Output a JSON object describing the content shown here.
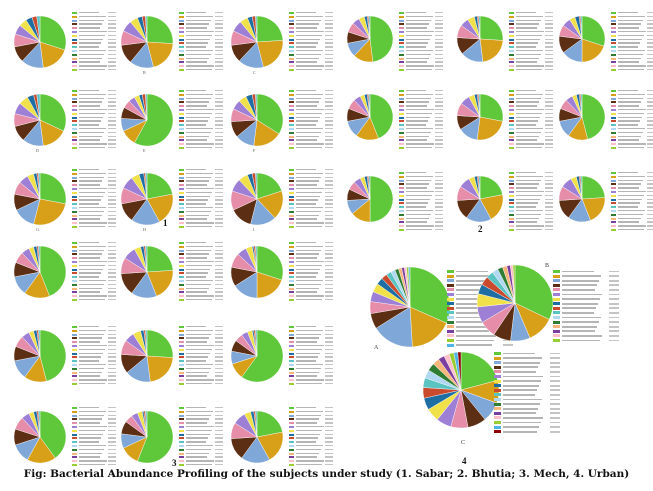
{
  "caption": "Fig: Bacterial Abundance Profiling of the subjects under study (1. Sabar; 2. Bhutia; 3. Mech, 4. Urban)",
  "chart_data": [
    {
      "type": "pie",
      "panel": "1",
      "title": "",
      "charts": [
        {
          "label": "",
          "series": [
            {
              "values": [
                30,
                18,
                14,
                10,
                8,
                6,
                5,
                4,
                3,
                2
              ]
            }
          ]
        },
        {
          "label": "B",
          "series": [
            {
              "values": [
                26,
                20,
                15,
                12,
                9,
                7,
                5,
                3,
                2,
                1
              ]
            }
          ]
        },
        {
          "label": "C",
          "series": [
            {
              "values": [
                24,
                22,
                16,
                11,
                9,
                7,
                5,
                3,
                2,
                1
              ]
            }
          ]
        },
        {
          "label": "D",
          "series": [
            {
              "values": [
                32,
                16,
                13,
                10,
                8,
                7,
                6,
                4,
                2,
                2
              ]
            }
          ]
        },
        {
          "label": "E",
          "series": [
            {
              "values": [
                58,
                10,
                8,
                7,
                5,
                4,
                3,
                2,
                2,
                1
              ]
            }
          ]
        },
        {
          "label": "F",
          "series": [
            {
              "values": [
                34,
                18,
                12,
                10,
                8,
                6,
                5,
                4,
                2,
                1
              ]
            }
          ]
        },
        {
          "label": "G",
          "series": [
            {
              "values": [
                28,
                26,
                14,
                10,
                8,
                6,
                4,
                2,
                1,
                1
              ]
            }
          ]
        },
        {
          "label": "H",
          "series": [
            {
              "values": [
                22,
                20,
                18,
                12,
                10,
                8,
                5,
                3,
                1,
                1
              ]
            }
          ]
        },
        {
          "label": "I",
          "series": [
            {
              "values": [
                20,
                18,
                16,
                14,
                12,
                8,
                6,
                3,
                2,
                1
              ]
            }
          ]
        }
      ]
    },
    {
      "type": "pie",
      "panel": "2",
      "title": "",
      "charts": [
        {
          "label": "",
          "series": [
            {
              "values": [
                48,
                14,
                10,
                8,
                7,
                5,
                4,
                2,
                1,
                1
              ]
            }
          ]
        },
        {
          "label": "",
          "series": [
            {
              "values": [
                26,
                22,
                16,
                12,
                9,
                6,
                5,
                2,
                1,
                1
              ]
            }
          ]
        },
        {
          "label": "",
          "series": [
            {
              "values": [
                30,
                20,
                15,
                12,
                8,
                6,
                4,
                3,
                1,
                1
              ]
            }
          ]
        },
        {
          "label": "",
          "series": [
            {
              "values": [
                44,
                16,
                12,
                9,
                7,
                5,
                3,
                2,
                1,
                1
              ]
            }
          ]
        },
        {
          "label": "",
          "series": [
            {
              "values": [
                28,
                24,
                14,
                10,
                9,
                7,
                4,
                2,
                1,
                1
              ]
            }
          ]
        },
        {
          "label": "",
          "series": [
            {
              "values": [
                46,
                14,
                12,
                9,
                7,
                5,
                3,
                2,
                1,
                1
              ]
            }
          ]
        },
        {
          "label": "",
          "series": [
            {
              "values": [
                50,
                14,
                10,
                8,
                6,
                5,
                3,
                2,
                1,
                1
              ]
            }
          ]
        },
        {
          "label": "",
          "series": [
            {
              "values": [
                22,
                20,
                18,
                14,
                10,
                8,
                4,
                2,
                1,
                1
              ]
            }
          ]
        },
        {
          "label": "",
          "series": [
            {
              "values": [
                24,
                20,
                16,
                14,
                10,
                8,
                4,
                2,
                1,
                1
              ]
            }
          ]
        }
      ]
    },
    {
      "type": "pie",
      "panel": "3",
      "title": "",
      "charts": [
        {
          "label": "",
          "series": [
            {
              "values": [
                44,
                16,
                12,
                9,
                7,
                5,
                3,
                2,
                1,
                1
              ]
            }
          ]
        },
        {
          "label": "",
          "series": [
            {
              "values": [
                24,
                20,
                16,
                14,
                10,
                8,
                4,
                2,
                1,
                1
              ]
            }
          ]
        },
        {
          "label": "",
          "series": [
            {
              "values": [
                30,
                20,
                16,
                12,
                9,
                6,
                4,
                1,
                1,
                1
              ]
            }
          ]
        },
        {
          "label": "",
          "series": [
            {
              "values": [
                46,
                14,
                12,
                9,
                7,
                5,
                3,
                2,
                1,
                1
              ]
            }
          ]
        },
        {
          "label": "",
          "series": [
            {
              "values": [
                26,
                22,
                16,
                12,
                9,
                6,
                5,
                2,
                1,
                1
              ]
            }
          ]
        },
        {
          "label": "",
          "series": [
            {
              "values": [
                60,
                10,
                8,
                7,
                5,
                4,
                3,
                1,
                1,
                1
              ]
            }
          ]
        },
        {
          "label": "",
          "series": [
            {
              "values": [
                40,
                18,
                12,
                10,
                8,
                5,
                3,
                2,
                1,
                1
              ]
            }
          ]
        },
        {
          "label": "",
          "series": [
            {
              "values": [
                56,
                12,
                9,
                8,
                5,
                4,
                3,
                1,
                1,
                1
              ]
            }
          ]
        },
        {
          "label": "",
          "series": [
            {
              "values": [
                22,
                20,
                18,
                14,
                10,
                8,
                4,
                2,
                1,
                1
              ]
            }
          ]
        }
      ]
    },
    {
      "type": "pie",
      "panel": "4",
      "title": "",
      "charts": [
        {
          "label": "A",
          "series": [
            {
              "values": [
                31.9,
                17.6,
                17.2,
                6.3,
                4.9,
                4.1,
                3.6,
                2.8,
                2.4,
                2.1,
                1.8,
                1.5,
                1.3,
                1.1,
                0.9,
                0.8,
                0.6
              ]
            }
          ]
        },
        {
          "label": "B",
          "series": [
            {
              "values": [
                32.5,
                11.6,
                8.4,
                7.6,
                7.2,
                6.9,
                5.7,
                4.2,
                3.8,
                3.1,
                2.6,
                2.2,
                1.9,
                1.5,
                1.1,
                0.9
              ]
            }
          ]
        },
        {
          "label": "C",
          "series": [
            {
              "values": [
                19.8,
                9.2,
                8.1,
                7.5,
                6.9,
                6.1,
                5.4,
                4.8,
                4.3,
                3.9,
                3.4,
                3.1,
                2.8,
                2.5,
                2.2,
                1.9,
                1.6,
                1.3
              ]
            }
          ]
        }
      ]
    }
  ]
}
